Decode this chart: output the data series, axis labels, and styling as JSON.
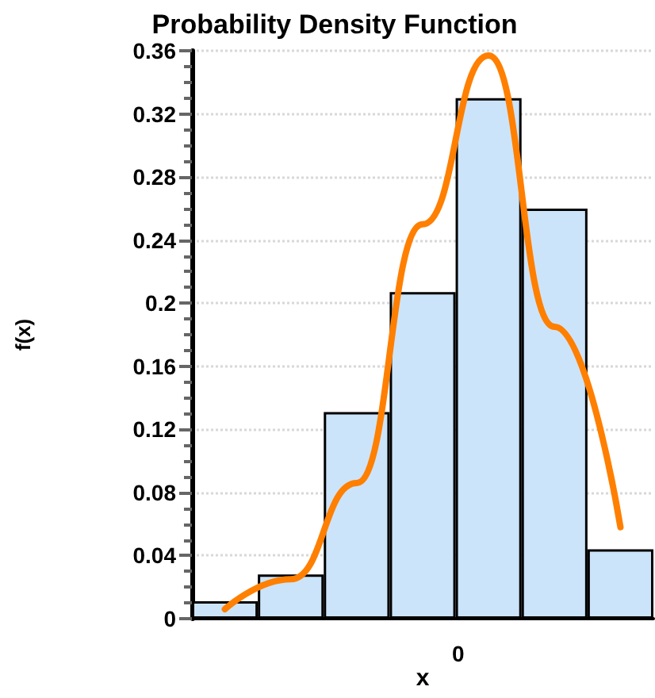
{
  "chart_data": {
    "type": "bar",
    "title": "Probability Density Function",
    "xlabel": "x",
    "ylabel": "f(x)",
    "categories": [
      null,
      null,
      null,
      null,
      null,
      null,
      null
    ],
    "values": [
      0.011,
      0.028,
      0.131,
      0.207,
      0.33,
      0.26,
      0.044
    ],
    "color": "#cce4fa",
    "series": [
      {
        "type": "line",
        "color": "#ff7f00",
        "values": [
          0.006,
          0.025,
          0.086,
          0.25,
          0.357,
          0.185,
          0.058
        ]
      }
    ],
    "ylim": [
      0,
      0.36
    ],
    "yticks": [
      0,
      0.04,
      0.08,
      0.12,
      0.16,
      0.2,
      0.24,
      0.28,
      0.32,
      0.36
    ],
    "annotations": [
      "0"
    ],
    "grid": "y",
    "line_style": "solid",
    "marker": "none"
  }
}
